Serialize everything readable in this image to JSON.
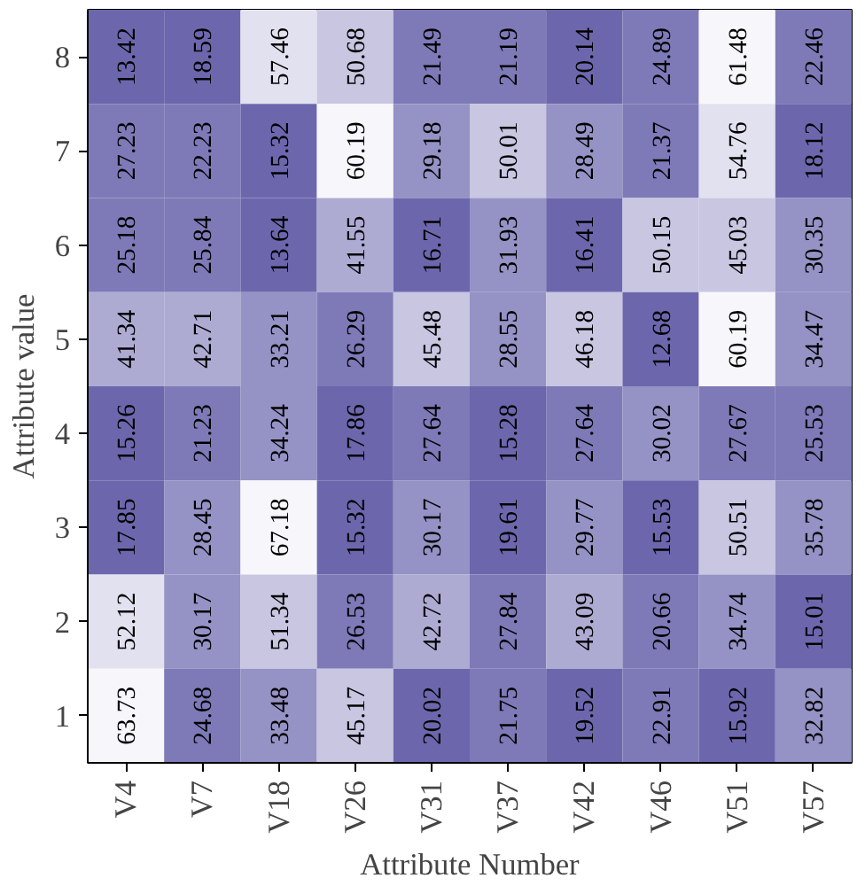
{
  "chart_data": {
    "type": "heatmap",
    "xlabel": "Attribute Number",
    "ylabel": "Attribute value",
    "categories": [
      "V4",
      "V7",
      "V18",
      "V26",
      "V31",
      "V37",
      "V42",
      "V46",
      "V51",
      "V57"
    ],
    "y_categories": [
      "8",
      "7",
      "6",
      "5",
      "4",
      "3",
      "2",
      "1"
    ],
    "data_labels": true,
    "cells": [
      [
        13.42,
        18.59,
        57.46,
        50.68,
        21.49,
        21.19,
        20.14,
        24.89,
        61.48,
        22.46
      ],
      [
        27.23,
        22.23,
        15.32,
        60.19,
        29.18,
        50.01,
        28.49,
        21.37,
        54.76,
        18.12
      ],
      [
        25.18,
        25.84,
        13.64,
        41.55,
        16.71,
        31.93,
        16.41,
        50.15,
        45.03,
        30.35
      ],
      [
        41.34,
        42.71,
        33.21,
        26.29,
        45.48,
        28.55,
        46.18,
        12.68,
        60.19,
        34.47
      ],
      [
        15.26,
        21.23,
        34.24,
        17.86,
        27.64,
        15.28,
        27.64,
        30.02,
        27.67,
        25.53
      ],
      [
        17.85,
        28.45,
        67.18,
        15.32,
        30.17,
        19.61,
        29.77,
        15.53,
        50.51,
        35.78
      ],
      [
        52.12,
        30.17,
        51.34,
        26.53,
        42.72,
        27.84,
        43.09,
        20.66,
        34.74,
        15.01
      ],
      [
        63.73,
        24.68,
        33.48,
        45.17,
        20.02,
        21.75,
        19.52,
        22.91,
        15.92,
        32.82
      ]
    ]
  }
}
